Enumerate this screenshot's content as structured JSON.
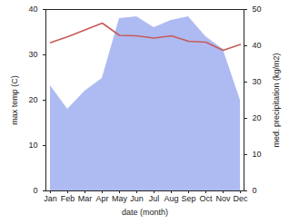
{
  "chart_data": {
    "type": "line",
    "categories": [
      "Jan",
      "Feb",
      "Mar",
      "Apr",
      "May",
      "Jun",
      "Jul",
      "Aug",
      "Sep",
      "Oct",
      "Nov",
      "Dec"
    ],
    "x_label": "date (month)",
    "y_label": "max temp (C)",
    "y2_label": "med. precipitation (kg/m2)",
    "ylim": [
      0,
      40
    ],
    "yticks": [
      0,
      10,
      20,
      30,
      40
    ],
    "y2lim": [
      0,
      50
    ],
    "y2ticks": [
      0,
      10,
      20,
      30,
      40,
      50
    ],
    "grid": false,
    "series": [
      {
        "name": "med. precipitation",
        "type": "area",
        "axis": "y2",
        "color": "#aebbf2",
        "values": [
          29,
          22.5,
          27.5,
          31,
          47.5,
          48,
          45,
          47,
          48,
          42.5,
          39,
          25
        ]
      },
      {
        "name": "max temp",
        "type": "line",
        "axis": "y",
        "color": "#c85a5a",
        "values": [
          32.7,
          34,
          35.5,
          37,
          34.3,
          34.2,
          33.7,
          34.2,
          33,
          32.8,
          31,
          32.3
        ]
      }
    ]
  }
}
